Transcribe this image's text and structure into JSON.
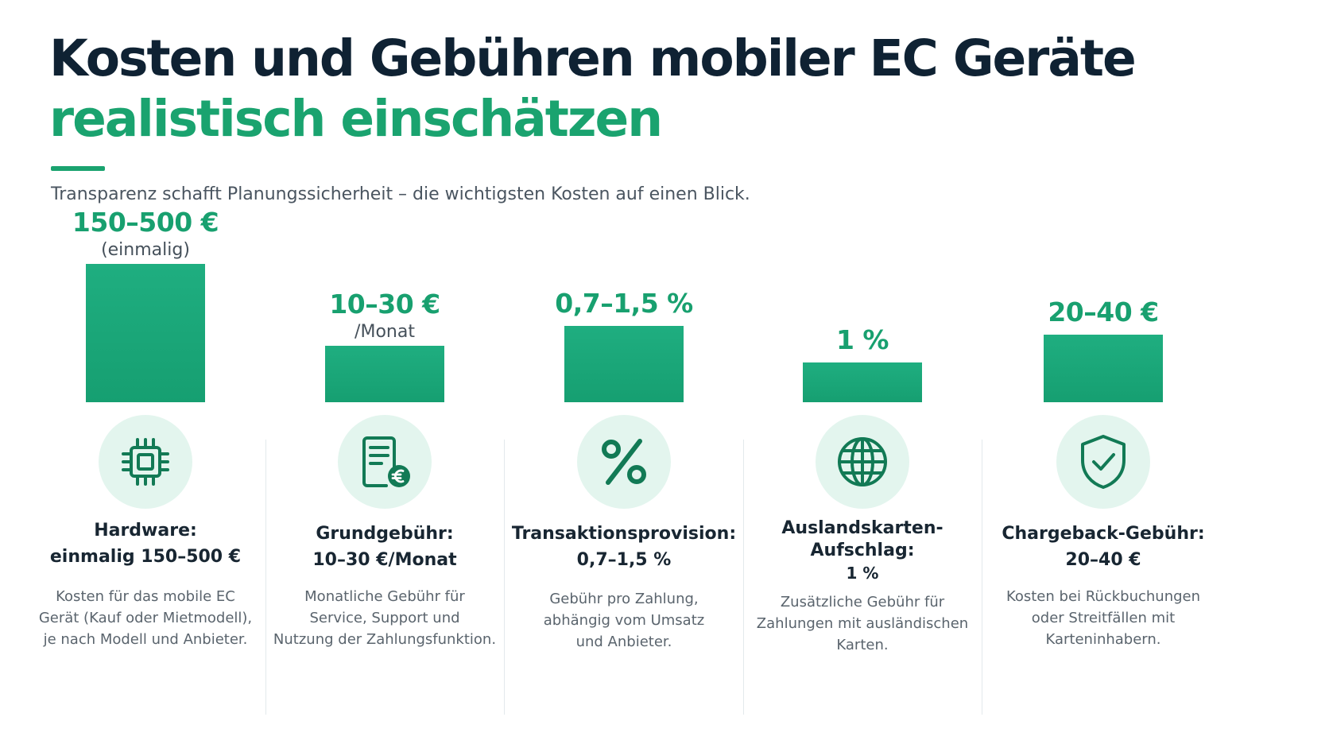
{
  "title_line1": "Kosten und Gebühren mobiler EC Geräte",
  "title_line2": "realistisch einschätzen",
  "subtitle": "Transparenz schafft Planungssicherheit – die wichtigsten Kosten auf einen Blick.",
  "colors": {
    "dark": "#0f2233",
    "accent_green": "#1aa36f",
    "bar_green": "#1aa878",
    "icon_bg": "#e3f5ee",
    "icon_stroke": "#127a55"
  },
  "chart_data": {
    "type": "bar",
    "title": "Kosten und Gebühren mobiler EC Geräte realistisch einschätzen",
    "subtitle": "Transparenz schafft Planungssicherheit – die wichtigsten Kosten auf einen Blick.",
    "categories": [
      "Hardware",
      "Grundgebühr",
      "Transaktionsprovision",
      "Auslandskarten-Aufschlag",
      "Chargeback-Gebühr"
    ],
    "value_labels": [
      "150–500 €",
      "10–30 €",
      "0,7–1,5 %",
      "1 %",
      "20–40 €"
    ],
    "value_units": [
      "(einmalig)",
      "/Monat",
      "",
      "",
      ""
    ],
    "relative_bar_heights": [
      1.0,
      0.41,
      0.55,
      0.29,
      0.49
    ],
    "axes": "none",
    "grid": false,
    "legend": "none"
  },
  "cards": [
    {
      "icon": "chip-icon",
      "title_lines": [
        "Hardware:",
        "einmalig 150–500 €"
      ],
      "desc_lines": [
        "Kosten für das mobile EC",
        "Gerät (Kauf oder Mietmodell),",
        "je nach Modell und Anbieter."
      ]
    },
    {
      "icon": "invoice-euro-icon",
      "title_lines": [
        "Grundgebühr:",
        "10–30 €/Monat"
      ],
      "desc_lines": [
        "Monatliche Gebühr für",
        "Service, Support und",
        "Nutzung der Zahlungsfunktion."
      ]
    },
    {
      "icon": "percent-icon",
      "title_lines": [
        "Transaktionsprovision:",
        "0,7–1,5 %"
      ],
      "desc_lines": [
        "Gebühr pro Zahlung,",
        "abhängig vom Umsatz",
        "und Anbieter."
      ]
    },
    {
      "icon": "globe-icon",
      "title_lines": [
        "Auslandskarten-",
        "Aufschlag:",
        "1 %"
      ],
      "desc_lines": [
        "Zusätzliche Gebühr für",
        "Zahlungen mit ausländischen",
        "Karten."
      ]
    },
    {
      "icon": "shield-check-icon",
      "title_lines": [
        "Chargeback-Gebühr:",
        "20–40 €"
      ],
      "desc_lines": [
        "Kosten bei Rückbuchungen",
        "oder Streitfällen mit",
        "Karteninhabern."
      ]
    }
  ]
}
